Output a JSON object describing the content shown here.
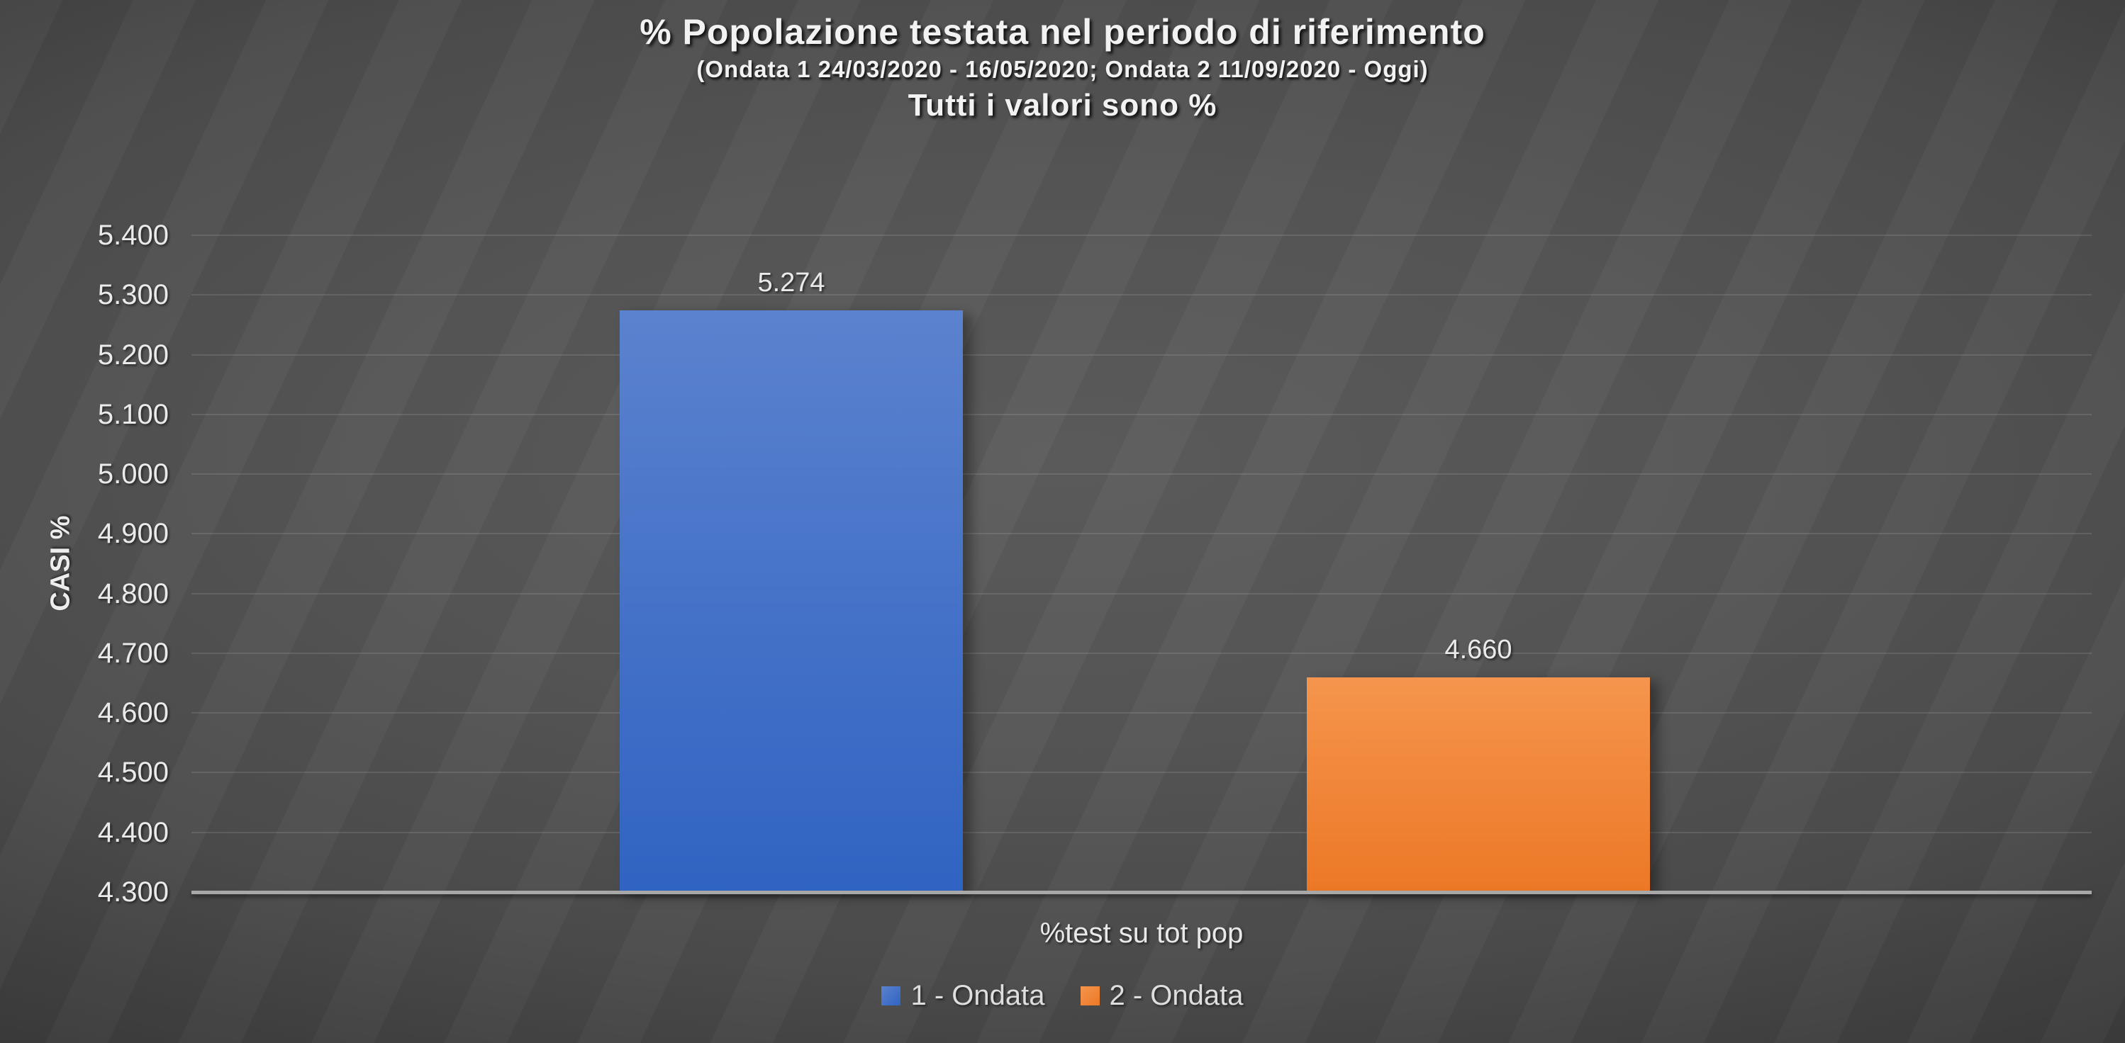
{
  "chart_data": {
    "type": "bar",
    "title": "% Popolazione testata nel periodo di riferimento",
    "subtitle": "(Ondata 1 24/03/2020 - 16/05/2020; Ondata 2 11/09/2020 - Oggi)",
    "subtitle2": "Tutti i valori sono %",
    "categories": [
      "%test su tot pop"
    ],
    "series": [
      {
        "name": "1 - Ondata",
        "values": [
          5.274
        ],
        "data_label": "5.274",
        "color_top": "#5b82ce",
        "color_bottom": "#3063c2"
      },
      {
        "name": "2 - Ondata",
        "values": [
          4.66
        ],
        "data_label": "4.660",
        "color_top": "#f5954d",
        "color_bottom": "#ec7826"
      }
    ],
    "xlabel": "%test su tot pop",
    "ylabel": "CASI %",
    "ylim": [
      4.3,
      5.4
    ],
    "yticks": [
      "5.400",
      "5.300",
      "5.200",
      "5.100",
      "5.000",
      "4.900",
      "4.800",
      "4.700",
      "4.600",
      "4.500",
      "4.400",
      "4.300"
    ],
    "grid": true,
    "legend_position": "bottom",
    "background_color": "#4c4c4c",
    "text_color": "#ededed",
    "axis_line_color": "#a8a8a8"
  }
}
